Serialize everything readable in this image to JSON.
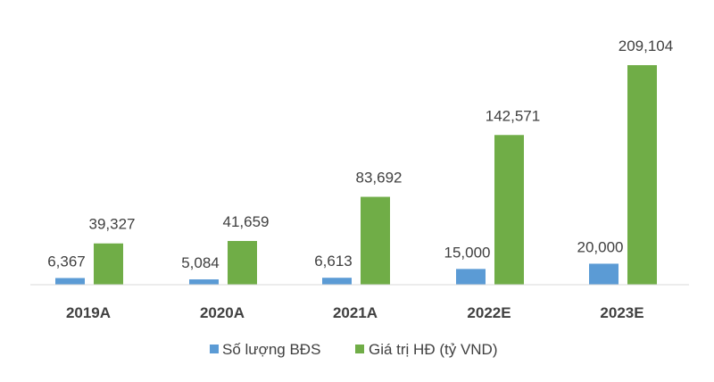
{
  "chart_data": {
    "type": "bar",
    "title": "",
    "xlabel": "",
    "ylabel": "",
    "categories": [
      "2019A",
      "2020A",
      "2021A",
      "2022E",
      "2023E"
    ],
    "series": [
      {
        "name": "Số lượng BĐS",
        "color": "#5B9BD5",
        "values": [
          6367,
          5084,
          6613,
          15000,
          20000
        ],
        "labels": [
          "6,367",
          "5,084",
          "6,613",
          "15,000",
          "20,000"
        ]
      },
      {
        "name": "Giá trị HĐ (tỷ VND)",
        "color": "#70AD47",
        "values": [
          39327,
          41659,
          83692,
          142571,
          209104
        ],
        "labels": [
          "39,327",
          "41,659",
          "83,692",
          "142,571",
          "209,104"
        ]
      }
    ],
    "ylim": [
      0,
      210000
    ],
    "grid": false,
    "legend": "bottom",
    "axis_color": "#D9D9D9"
  }
}
